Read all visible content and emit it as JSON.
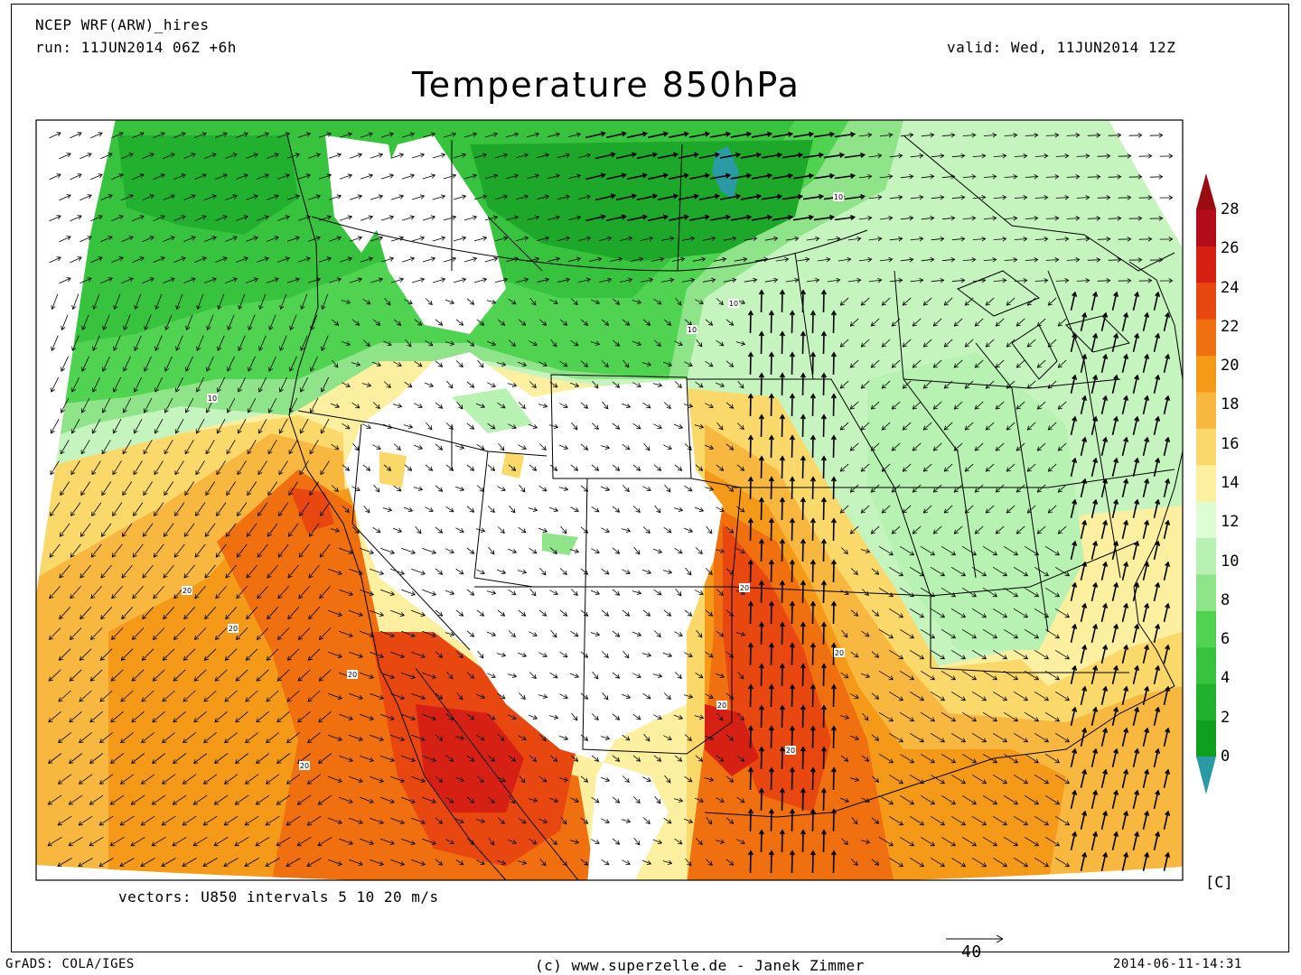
{
  "header": {
    "model": "NCEP WRF(ARW)_hires",
    "run": "run: 11JUN2014 06Z +6h",
    "valid": "valid: Wed, 11JUN2014 12Z",
    "title": "Temperature 850hPa"
  },
  "footer": {
    "vectors_note": "vectors: U850 intervals 5 10 20 m/s",
    "grads": "GrADS: COLA/IGES",
    "copyright": "(c) www.superzelle.de - Janek Zimmer",
    "timestamp": "2014-06-11-14:31",
    "ref_vector_label": "40"
  },
  "colorbar": {
    "unit": "[C]",
    "levels": [
      "0",
      "2",
      "4",
      "6",
      "8",
      "10",
      "12",
      "14",
      "16",
      "18",
      "20",
      "22",
      "24",
      "26",
      "28"
    ],
    "colors": [
      "#0f9f1e",
      "#21b12f",
      "#38c33e",
      "#50d350",
      "#8fe48a",
      "#b7f2b2",
      "#ddfdd5",
      "#fcefa0",
      "#fbd86a",
      "#f8b840",
      "#f59a18",
      "#f07010",
      "#e94710",
      "#d72014",
      "#b40c1a"
    ],
    "low_color": "#2a9aa4",
    "high_color": "#9b0b12"
  },
  "contour_labels": [
    "10",
    "10",
    "10",
    "10",
    "20",
    "20",
    "20",
    "20",
    "20",
    "20",
    "20",
    "20"
  ],
  "map": {
    "colors": {
      "white_zone": "#ffffff",
      "green_dark": "#16a623",
      "green_mid": "#3cc73f",
      "green_light": "#8fe48a",
      "green_pale": "#c6f4bf",
      "yellow_pale": "#fcefa0",
      "yellow": "#fbd86a",
      "orange_light": "#f8b840",
      "orange": "#f59a18",
      "orange_dark": "#f07010",
      "red": "#e94710",
      "red_dark": "#d72014",
      "lake": "#2a9aa4"
    }
  }
}
